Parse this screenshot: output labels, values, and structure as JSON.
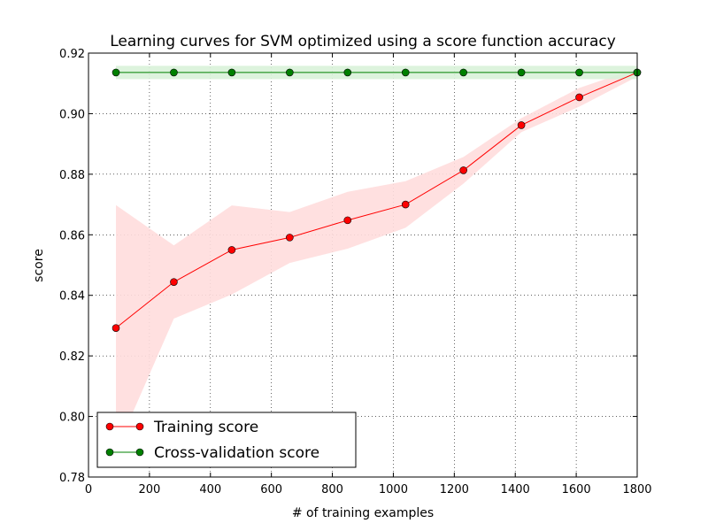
{
  "chart_data": {
    "type": "line",
    "title": "Learning curves for SVM optimized using a score function accuracy",
    "xlabel": "# of training examples",
    "ylabel": "score",
    "xlim": [
      0,
      1800
    ],
    "ylim": [
      0.78,
      0.92
    ],
    "xticks": [
      0,
      200,
      400,
      600,
      800,
      1000,
      1200,
      1400,
      1600,
      1800
    ],
    "xtick_labels": [
      "0",
      "200",
      "400",
      "600",
      "800",
      "1000",
      "1200",
      "1400",
      "1600",
      "1800"
    ],
    "yticks": [
      0.78,
      0.8,
      0.82,
      0.84,
      0.86,
      0.88,
      0.9,
      0.92
    ],
    "ytick_labels": [
      "0.78",
      "0.80",
      "0.82",
      "0.84",
      "0.86",
      "0.88",
      "0.90",
      "0.92"
    ],
    "grid": true,
    "legend_position": "bottom-left",
    "x": [
      90,
      280,
      470,
      660,
      850,
      1040,
      1230,
      1420,
      1610,
      1800
    ],
    "series": [
      {
        "name": "Training score",
        "color": "#ff0000",
        "band_color": "#ffdddd",
        "values": [
          0.8292,
          0.8444,
          0.855,
          0.8591,
          0.8648,
          0.87,
          0.8813,
          0.8962,
          0.9054,
          0.9136
        ],
        "band_upper": [
          0.8698,
          0.8565,
          0.8697,
          0.8675,
          0.8742,
          0.8777,
          0.8857,
          0.8985,
          0.9085,
          0.915
        ],
        "band_lower": [
          0.7886,
          0.8323,
          0.8403,
          0.8507,
          0.8554,
          0.8623,
          0.8769,
          0.8939,
          0.9023,
          0.9122
        ]
      },
      {
        "name": "Cross-validation score",
        "color": "#008000",
        "band_color": "#d9f2d9",
        "values": [
          0.9136,
          0.9136,
          0.9136,
          0.9136,
          0.9136,
          0.9136,
          0.9136,
          0.9136,
          0.9136,
          0.9136
        ],
        "band_upper": [
          0.9158,
          0.9158,
          0.9158,
          0.9158,
          0.9158,
          0.9158,
          0.9158,
          0.9158,
          0.9158,
          0.9158
        ],
        "band_lower": [
          0.9114,
          0.9114,
          0.9114,
          0.9114,
          0.9114,
          0.9114,
          0.9114,
          0.9114,
          0.9114,
          0.9114
        ]
      }
    ]
  }
}
